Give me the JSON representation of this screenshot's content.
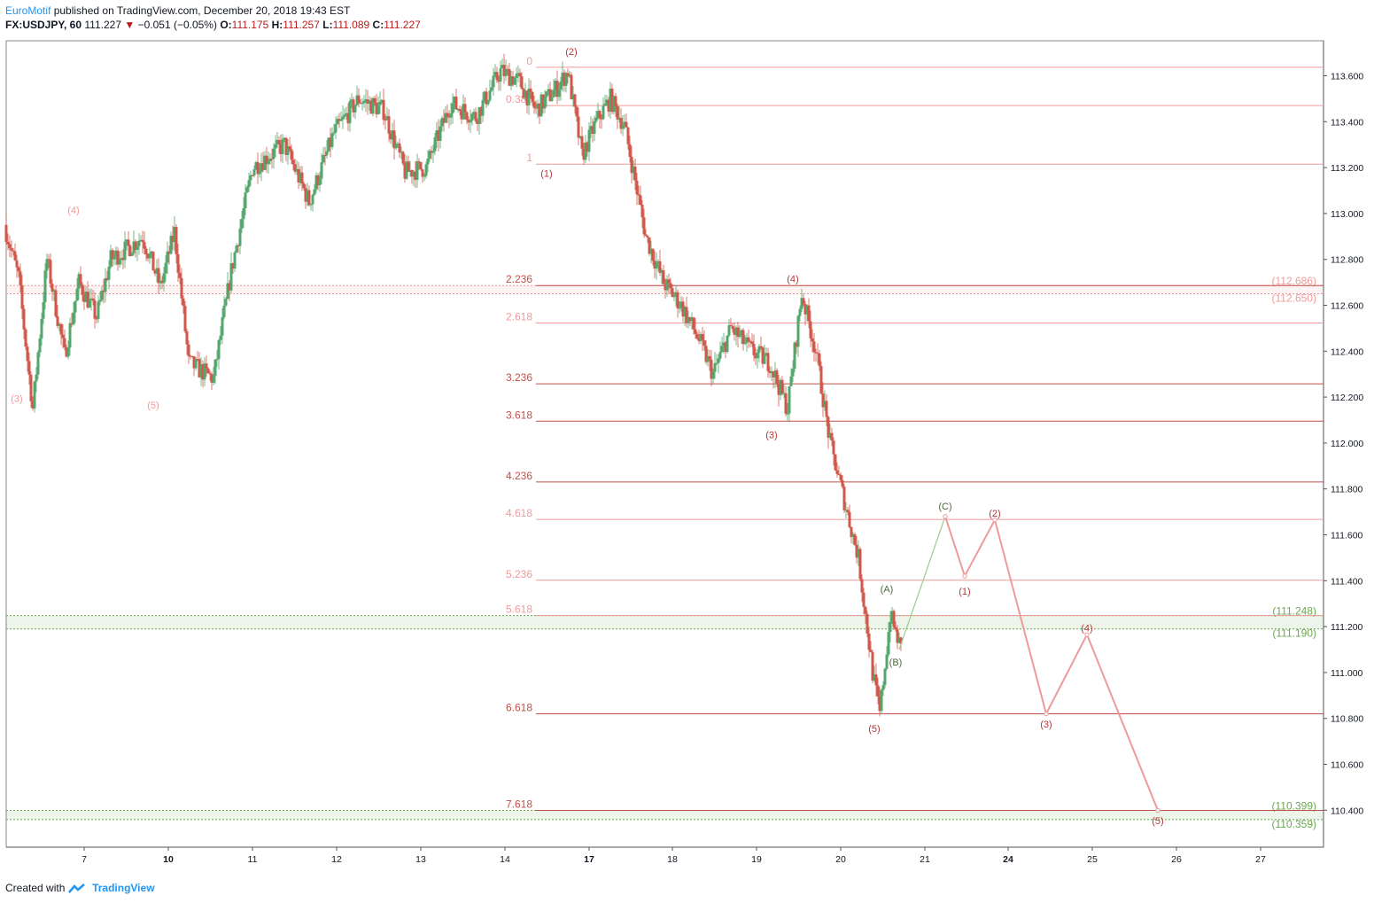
{
  "header": {
    "author": "EuroMotif",
    "published_text": "published on TradingView.com, December 20, 2018 19:43 EST",
    "symbol": "FX:USDJPY, 60",
    "last": "111.227",
    "change_arrow": "▼",
    "change": "−0.051 (−0.05%)",
    "o_label": "O:",
    "o": "111.175",
    "h_label": "H:",
    "h": "111.257",
    "l_label": "L:",
    "l": "111.089",
    "c_label": "C:",
    "c": "111.227"
  },
  "footer": {
    "created_with": "Created with",
    "brand": "TradingView"
  },
  "colors": {
    "up": "#53a66c",
    "down": "#d0574a",
    "fib": "#c0504a",
    "fib_light": "#ef9a9a",
    "support": "#6aa84f",
    "projection": "#ef9a9a",
    "wave_dark": "#b23a3a",
    "brand": "#2196f3"
  },
  "chart_data": {
    "type": "candlestick",
    "symbol": "FX:USDJPY",
    "interval": "60",
    "x_labels": [
      "7",
      "10",
      "11",
      "12",
      "13",
      "14",
      "17",
      "18",
      "19",
      "20",
      "21",
      "24",
      "25",
      "26",
      "27"
    ],
    "y_ticks": [
      "113.600",
      "113.400",
      "113.200",
      "113.000",
      "112.800",
      "112.600",
      "112.400",
      "112.200",
      "112.000",
      "111.800",
      "111.600",
      "111.400",
      "111.200",
      "111.000",
      "110.800",
      "110.600",
      "110.400"
    ],
    "ylim": [
      110.2,
      113.8
    ],
    "price_path": [
      [
        0,
        112.95
      ],
      [
        8,
        112.72
      ],
      [
        16,
        112.15
      ],
      [
        24,
        112.8
      ],
      [
        34,
        112.38
      ],
      [
        42,
        112.7
      ],
      [
        52,
        112.55
      ],
      [
        60,
        112.8
      ],
      [
        70,
        112.85
      ],
      [
        78,
        112.9
      ],
      [
        88,
        112.68
      ],
      [
        96,
        112.92
      ],
      [
        104,
        112.35
      ],
      [
        118,
        112.28
      ],
      [
        128,
        112.75
      ],
      [
        140,
        113.2
      ],
      [
        158,
        113.3
      ],
      [
        172,
        113.05
      ],
      [
        186,
        113.35
      ],
      [
        200,
        113.5
      ],
      [
        214,
        113.45
      ],
      [
        226,
        113.18
      ],
      [
        238,
        113.2
      ],
      [
        252,
        113.48
      ],
      [
        266,
        113.42
      ],
      [
        280,
        113.62
      ],
      [
        290,
        113.58
      ],
      [
        300,
        113.45
      ],
      [
        312,
        113.55
      ],
      [
        318,
        113.62
      ],
      [
        326,
        113.25
      ],
      [
        334,
        113.4
      ],
      [
        342,
        113.5
      ],
      [
        350,
        113.38
      ],
      [
        362,
        112.9
      ],
      [
        372,
        112.7
      ],
      [
        382,
        112.6
      ],
      [
        392,
        112.45
      ],
      [
        400,
        112.3
      ],
      [
        410,
        112.5
      ],
      [
        422,
        112.4
      ],
      [
        432,
        112.35
      ],
      [
        442,
        112.15
      ],
      [
        450,
        112.65
      ],
      [
        458,
        112.4
      ],
      [
        466,
        112.0
      ],
      [
        474,
        111.75
      ],
      [
        482,
        111.5
      ],
      [
        490,
        111.0
      ],
      [
        494,
        110.82
      ],
      [
        500,
        111.25
      ],
      [
        506,
        111.1
      ]
    ],
    "fib_levels": [
      {
        "label": "0",
        "value": 113.637
      },
      {
        "label": "0.382",
        "value": 113.47
      },
      {
        "label": "1",
        "value": 113.215
      },
      {
        "label": "2.236",
        "value": 112.686
      },
      {
        "label": "2.618",
        "value": 112.523
      },
      {
        "label": "3.236",
        "value": 112.258
      },
      {
        "label": "3.618",
        "value": 112.095
      },
      {
        "label": "4.236",
        "value": 111.83
      },
      {
        "label": "4.618",
        "value": 111.667
      },
      {
        "label": "5.236",
        "value": 111.402
      },
      {
        "label": "5.618",
        "value": 111.248
      },
      {
        "label": "6.618",
        "value": 110.82
      },
      {
        "label": "7.618",
        "value": 110.399
      }
    ],
    "zones": [
      {
        "top": 112.686,
        "bottom": 112.65,
        "top_label": "(112.686)",
        "bottom_label": "(112.650)",
        "color": "#ef9a9a"
      },
      {
        "top": 111.248,
        "bottom": 111.19,
        "top_label": "(111.248)",
        "bottom_label": "(111.190)",
        "color": "#6aa84f"
      },
      {
        "top": 110.399,
        "bottom": 110.359,
        "top_label": "(110.399)",
        "bottom_label": "(110.359)",
        "color": "#6aa84f"
      }
    ],
    "wave_labels": [
      {
        "text": "(3)",
        "bar": 6,
        "price": 112.18,
        "color": "#ef9a9a"
      },
      {
        "text": "(4)",
        "bar": 38,
        "price": 113.0,
        "color": "#ef9a9a"
      },
      {
        "text": "(5)",
        "bar": 83,
        "price": 112.15,
        "color": "#ef9a9a"
      },
      {
        "text": "(2)",
        "bar": 319,
        "price": 113.69,
        "color": "#b23a3a"
      },
      {
        "text": "(1)",
        "bar": 305,
        "price": 113.16,
        "color": "#b23a3a"
      },
      {
        "text": "(4)",
        "bar": 444,
        "price": 112.7,
        "color": "#b23a3a"
      },
      {
        "text": "(3)",
        "bar": 432,
        "price": 112.02,
        "color": "#b23a3a"
      },
      {
        "text": "(5)",
        "bar": 490,
        "price": 110.74,
        "color": "#b23a3a"
      },
      {
        "text": "(A)",
        "bar": 497,
        "price": 111.35,
        "color": "#4a6b3a"
      },
      {
        "text": "(B)",
        "bar": 502,
        "price": 111.03,
        "color": "#4a6b3a"
      },
      {
        "text": "(C)",
        "bar": 530,
        "price": 111.71,
        "color": "#4a6b3a"
      },
      {
        "text": "(1)",
        "bar": 541,
        "price": 111.34,
        "color": "#b23a3a"
      },
      {
        "text": "(2)",
        "bar": 558,
        "price": 111.68,
        "color": "#b23a3a"
      },
      {
        "text": "(3)",
        "bar": 587,
        "price": 110.76,
        "color": "#b23a3a"
      },
      {
        "text": "(4)",
        "bar": 610,
        "price": 111.18,
        "color": "#b23a3a"
      },
      {
        "text": "(5)",
        "bar": 650,
        "price": 110.34,
        "color": "#b23a3a"
      }
    ],
    "projection_abc": [
      [
        504,
        111.1
      ],
      [
        530,
        111.68
      ]
    ],
    "projection_impulse": [
      [
        530,
        111.68
      ],
      [
        541,
        111.42
      ],
      [
        558,
        111.665
      ],
      [
        587,
        110.82
      ],
      [
        610,
        111.165
      ],
      [
        650,
        110.399
      ]
    ]
  }
}
